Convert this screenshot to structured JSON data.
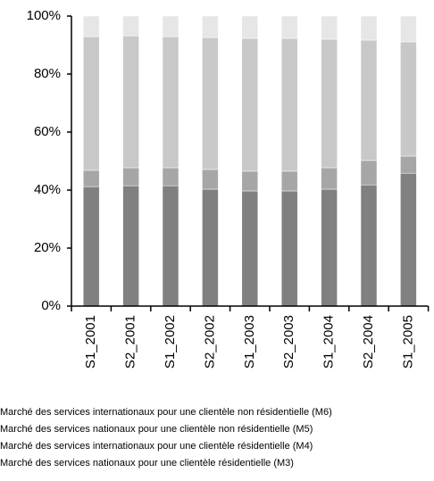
{
  "chart_data": {
    "type": "stacked_bar_100",
    "categories": [
      "S1_2001",
      "S2_2001",
      "S1_2002",
      "S2_2002",
      "S1_2003",
      "S2_2003",
      "S1_2004",
      "S2_2004",
      "S1_2005"
    ],
    "series": [
      {
        "name": "Marché des services nationaux pour une clientèle résidentielle (M3)",
        "color": "#808080",
        "values": [
          41.2,
          41.5,
          41.5,
          40.3,
          39.7,
          39.7,
          40.3,
          41.8,
          45.8
        ]
      },
      {
        "name": "Marché des services internationaux pour une clientèle résidentielle (M4)",
        "color": "#a6a6a6",
        "values": [
          5.6,
          6.2,
          6.2,
          6.8,
          6.8,
          6.8,
          7.4,
          8.4,
          5.9
        ]
      },
      {
        "name": "Marché des services nationaux pour une clientèle non résidentielle (M5)",
        "color": "#c8c8c8",
        "values": [
          46.1,
          45.5,
          45.2,
          45.5,
          45.8,
          45.8,
          44.3,
          41.5,
          39.4
        ]
      },
      {
        "name": "Marché des services internationaux pour une clientèle non résidentielle (M6)",
        "color": "#e6e6e6",
        "values": [
          7.1,
          6.8,
          7.1,
          7.4,
          7.7,
          7.7,
          8.0,
          8.3,
          8.9
        ]
      }
    ],
    "ylim": [
      0,
      100
    ],
    "yticks": [
      {
        "value": 0,
        "label": "0%"
      },
      {
        "value": 20,
        "label": "20%"
      },
      {
        "value": 40,
        "label": "40%"
      },
      {
        "value": 60,
        "label": "60%"
      },
      {
        "value": 80,
        "label": "80%"
      },
      {
        "value": 100,
        "label": "100%"
      }
    ]
  }
}
